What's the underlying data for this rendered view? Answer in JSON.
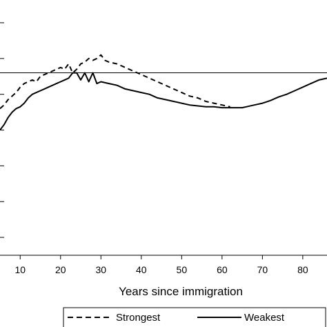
{
  "chart_data": {
    "type": "line",
    "title": "",
    "xlabel": "Years since immigration",
    "ylabel": "",
    "xlim": [
      5,
      86
    ],
    "ylim": [
      -0.9,
      0.45
    ],
    "reference_line_y": 0.12,
    "x_ticks": [
      10,
      20,
      30,
      40,
      50,
      60,
      70,
      80
    ],
    "x_tick_labels": [
      "10",
      "20",
      "30",
      "40",
      "50",
      "60",
      "70",
      "80"
    ],
    "y_ticks": [
      -0.8,
      -0.6,
      -0.4,
      -0.2,
      0.0,
      0.2,
      0.4
    ],
    "grid": false,
    "legend_position": "bottom",
    "series": [
      {
        "name": "Strongest",
        "style": "dashed",
        "color": "#000000",
        "x": [
          5,
          6,
          7,
          8,
          9,
          10,
          11,
          12,
          13,
          14,
          15,
          16,
          17,
          18,
          19,
          20,
          21,
          22,
          23,
          24,
          25,
          26,
          27,
          28,
          29,
          30,
          31,
          32,
          34,
          36,
          38,
          40,
          42,
          44,
          46,
          48,
          50,
          52,
          54,
          56,
          58,
          60,
          62
        ],
        "y": [
          -0.08,
          -0.06,
          -0.03,
          -0.01,
          0.01,
          0.04,
          0.06,
          0.07,
          0.08,
          0.07,
          0.1,
          0.11,
          0.12,
          0.13,
          0.14,
          0.15,
          0.14,
          0.17,
          0.12,
          0.14,
          0.17,
          0.18,
          0.2,
          0.19,
          0.2,
          0.22,
          0.19,
          0.18,
          0.17,
          0.15,
          0.13,
          0.11,
          0.09,
          0.07,
          0.05,
          0.03,
          0.01,
          -0.01,
          -0.02,
          -0.04,
          -0.05,
          -0.06,
          -0.07
        ]
      },
      {
        "name": "Weakest",
        "style": "solid",
        "color": "#000000",
        "x": [
          5,
          6,
          7,
          8,
          9,
          10,
          11,
          12,
          13,
          14,
          15,
          16,
          17,
          18,
          19,
          20,
          21,
          22,
          23,
          24,
          25,
          26,
          27,
          28,
          29,
          30,
          32,
          34,
          36,
          38,
          40,
          42,
          44,
          46,
          48,
          50,
          52,
          54,
          56,
          58,
          60,
          62,
          64,
          65,
          66,
          68,
          70,
          72,
          74,
          76,
          78,
          80,
          82,
          84,
          86
        ],
        "y": [
          -0.2,
          -0.17,
          -0.13,
          -0.1,
          -0.08,
          -0.07,
          -0.05,
          -0.02,
          0.0,
          0.01,
          0.02,
          0.03,
          0.04,
          0.05,
          0.06,
          0.07,
          0.08,
          0.09,
          0.12,
          0.12,
          0.08,
          0.12,
          0.07,
          0.12,
          0.06,
          0.07,
          0.06,
          0.05,
          0.03,
          0.02,
          0.01,
          0.0,
          -0.02,
          -0.03,
          -0.04,
          -0.05,
          -0.06,
          -0.065,
          -0.07,
          -0.07,
          -0.075,
          -0.075,
          -0.075,
          -0.075,
          -0.07,
          -0.06,
          -0.05,
          -0.035,
          -0.015,
          0.0,
          0.02,
          0.04,
          0.06,
          0.08,
          0.09
        ]
      }
    ]
  }
}
